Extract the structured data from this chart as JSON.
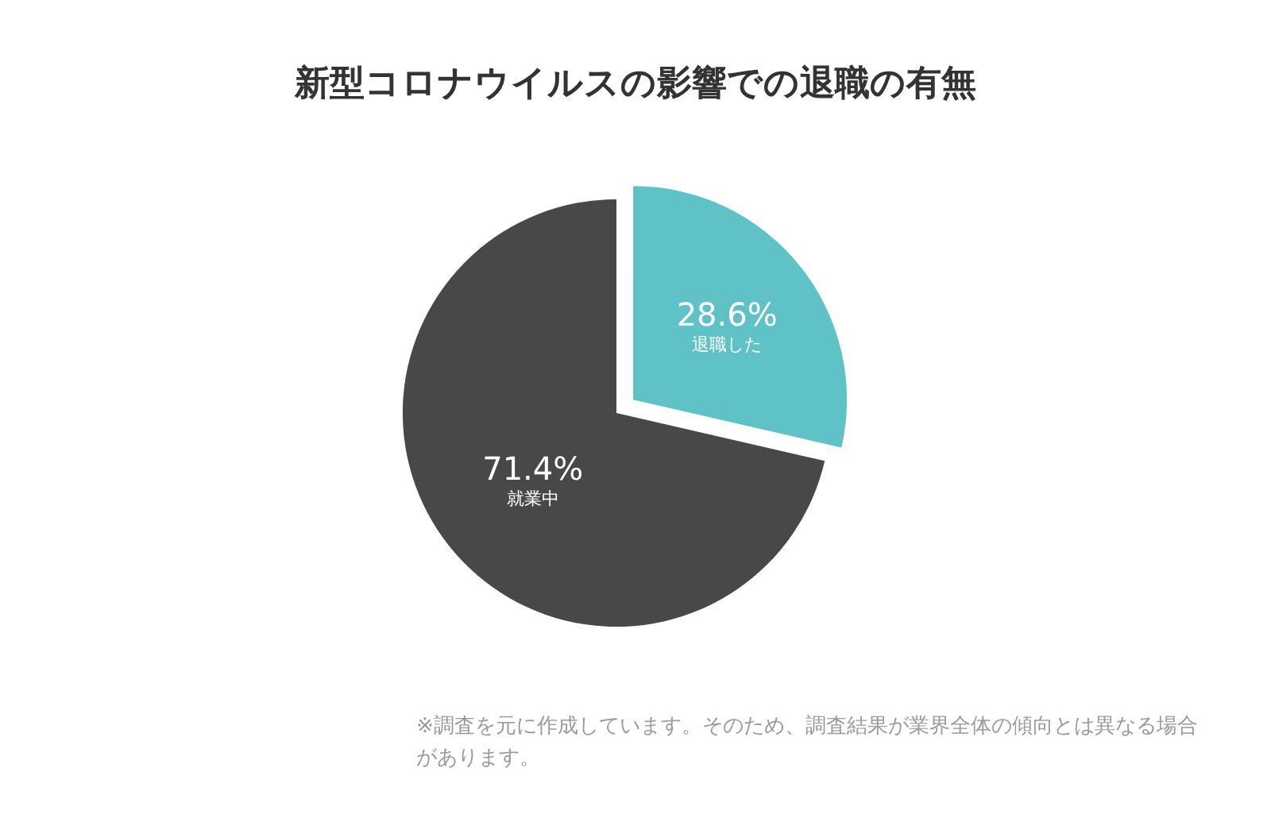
{
  "chart_data": {
    "type": "pie",
    "title": "新型コロナウイルスの影響での退職の有無",
    "categories": [
      "退職した",
      "就業中"
    ],
    "values": [
      28.6,
      71.4
    ],
    "colors": [
      "#5fc2c6",
      "#484848"
    ],
    "value_labels": [
      "28.6%",
      "71.4%"
    ],
    "legend": false,
    "annotations": [
      "※調査を元に作成しています。そのため、調査結果が業界全体の傾向とは異なる場合があります。"
    ]
  }
}
